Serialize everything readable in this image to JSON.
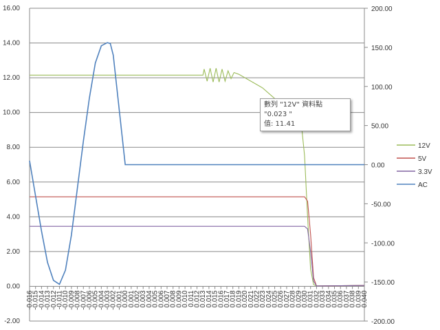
{
  "chart_data": {
    "type": "line",
    "title": "",
    "xlabel": "",
    "ylabel": "",
    "y2label": "",
    "x_ticks": {
      "start": -0.016,
      "end": 0.04,
      "step": 0.001
    },
    "ylim": [
      -2,
      16
    ],
    "y_ticks_step": 2,
    "y2lim": [
      -200,
      200
    ],
    "y2_ticks_step": 50,
    "grid": "horizontal",
    "legend": "right",
    "series": [
      {
        "name": "12V",
        "axis": "left",
        "color": "#9bbb59",
        "points": [
          [
            -0.016,
            12.15
          ],
          [
            0.013,
            12.15
          ],
          [
            0.0132,
            12.5
          ],
          [
            0.0137,
            11.8
          ],
          [
            0.0142,
            12.55
          ],
          [
            0.0147,
            11.75
          ],
          [
            0.0152,
            12.55
          ],
          [
            0.0157,
            11.75
          ],
          [
            0.0162,
            12.5
          ],
          [
            0.0167,
            11.8
          ],
          [
            0.0172,
            12.4
          ],
          [
            0.0177,
            11.95
          ],
          [
            0.0182,
            12.3
          ],
          [
            0.019,
            12.2
          ],
          [
            0.023,
            11.41
          ],
          [
            0.029,
            9.6
          ],
          [
            0.0295,
            9.2
          ],
          [
            0.03,
            7.5
          ],
          [
            0.0305,
            4
          ],
          [
            0.031,
            1
          ],
          [
            0.0315,
            0.1
          ],
          [
            0.032,
            0.02
          ],
          [
            0.04,
            0.05
          ]
        ]
      },
      {
        "name": "5V",
        "axis": "left",
        "color": "#c0504d",
        "points": [
          [
            -0.016,
            5.15
          ],
          [
            0.03,
            5.15
          ],
          [
            0.0305,
            4.9
          ],
          [
            0.031,
            3
          ],
          [
            0.0315,
            0.5
          ],
          [
            0.032,
            0.02
          ],
          [
            0.04,
            0.05
          ]
        ]
      },
      {
        "name": "3.3V",
        "axis": "left",
        "color": "#8064a2",
        "points": [
          [
            -0.016,
            3.45
          ],
          [
            0.03,
            3.45
          ],
          [
            0.0305,
            3.3
          ],
          [
            0.031,
            2
          ],
          [
            0.0315,
            0.3
          ],
          [
            0.032,
            0.02
          ],
          [
            0.04,
            0.05
          ]
        ]
      },
      {
        "name": "AC",
        "axis": "right",
        "color": "#4f81bd",
        "points": [
          [
            -0.016,
            5
          ],
          [
            -0.015,
            -40
          ],
          [
            -0.014,
            -85
          ],
          [
            -0.013,
            -125
          ],
          [
            -0.012,
            -148
          ],
          [
            -0.011,
            -153
          ],
          [
            -0.01,
            -135
          ],
          [
            -0.009,
            -90
          ],
          [
            -0.008,
            -30
          ],
          [
            -0.007,
            30
          ],
          [
            -0.006,
            85
          ],
          [
            -0.005,
            130
          ],
          [
            -0.004,
            152
          ],
          [
            -0.003,
            156
          ],
          [
            -0.0025,
            155
          ],
          [
            -0.002,
            140
          ],
          [
            -0.001,
            70
          ],
          [
            0.0,
            0
          ],
          [
            0.04,
            0
          ]
        ]
      }
    ],
    "tooltip": {
      "line1": "數列 \"12V\" 資料點 \"0.023 \"",
      "line2": "值: 11.41"
    }
  }
}
